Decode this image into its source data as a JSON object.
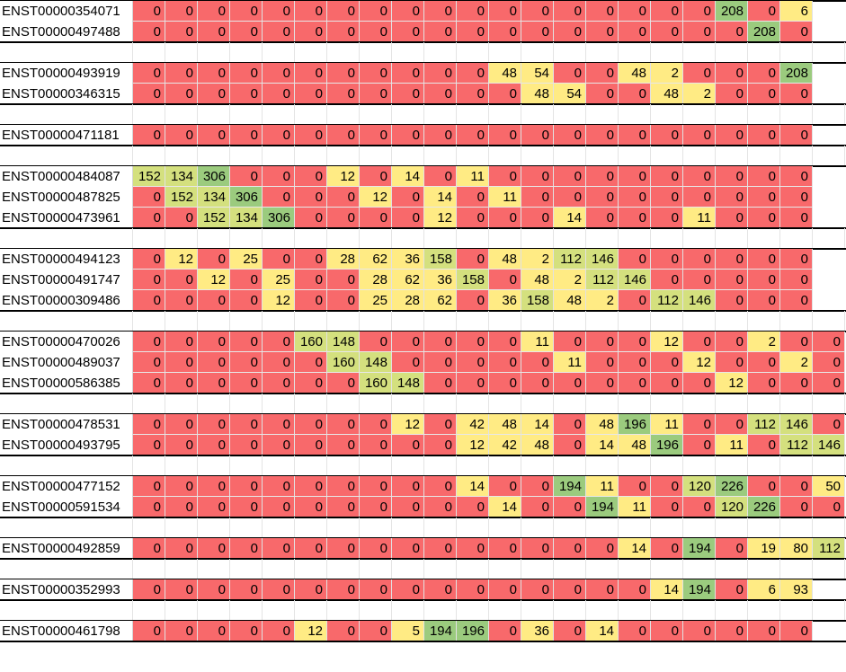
{
  "sheet": {
    "colors": {
      "zero": "#f8696b",
      "low": "#ffeb84",
      "mid": "#d4e07e",
      "high": "#9bcb7e",
      "border": "#000000"
    },
    "groups": [
      [
        {
          "id": "ENST00000354071",
          "values": [
            0,
            0,
            0,
            0,
            0,
            0,
            0,
            0,
            0,
            0,
            0,
            0,
            0,
            0,
            0,
            0,
            0,
            0,
            208,
            0,
            6
          ]
        },
        {
          "id": "ENST00000497488",
          "values": [
            0,
            0,
            0,
            0,
            0,
            0,
            0,
            0,
            0,
            0,
            0,
            0,
            0,
            0,
            0,
            0,
            0,
            0,
            0,
            208,
            0
          ]
        }
      ],
      [
        {
          "id": "ENST00000493919",
          "values": [
            0,
            0,
            0,
            0,
            0,
            0,
            0,
            0,
            0,
            0,
            0,
            48,
            54,
            0,
            0,
            48,
            2,
            0,
            0,
            0,
            208
          ]
        },
        {
          "id": "ENST00000346315",
          "values": [
            0,
            0,
            0,
            0,
            0,
            0,
            0,
            0,
            0,
            0,
            0,
            0,
            48,
            54,
            0,
            0,
            48,
            2,
            0,
            0,
            0
          ]
        }
      ],
      [
        {
          "id": "ENST00000471181",
          "values": [
            0,
            0,
            0,
            0,
            0,
            0,
            0,
            0,
            0,
            0,
            0,
            0,
            0,
            0,
            0,
            0,
            0,
            0,
            0,
            0,
            0
          ]
        }
      ],
      [
        {
          "id": "ENST00000484087",
          "values": [
            152,
            134,
            306,
            0,
            0,
            0,
            12,
            0,
            14,
            0,
            11,
            0,
            0,
            0,
            0,
            0,
            0,
            0,
            0,
            0,
            0
          ]
        },
        {
          "id": "ENST00000487825",
          "values": [
            0,
            152,
            134,
            306,
            0,
            0,
            0,
            12,
            0,
            14,
            0,
            11,
            0,
            0,
            0,
            0,
            0,
            0,
            0,
            0,
            0
          ]
        },
        {
          "id": "ENST00000473961",
          "values": [
            0,
            0,
            152,
            134,
            306,
            0,
            0,
            0,
            0,
            12,
            0,
            0,
            0,
            14,
            0,
            0,
            0,
            11,
            0,
            0,
            0
          ]
        }
      ],
      [
        {
          "id": "ENST00000494123",
          "values": [
            0,
            12,
            0,
            25,
            0,
            0,
            28,
            62,
            36,
            158,
            0,
            48,
            2,
            112,
            146,
            0,
            0,
            0,
            0,
            0,
            0
          ]
        },
        {
          "id": "ENST00000491747",
          "values": [
            0,
            0,
            12,
            0,
            25,
            0,
            0,
            28,
            62,
            36,
            158,
            0,
            48,
            2,
            112,
            146,
            0,
            0,
            0,
            0,
            0
          ]
        },
        {
          "id": "ENST00000309486",
          "values": [
            0,
            0,
            0,
            0,
            12,
            0,
            0,
            25,
            28,
            62,
            0,
            36,
            158,
            48,
            2,
            0,
            112,
            146,
            0,
            0,
            0
          ]
        }
      ],
      [
        {
          "id": "ENST00000470026",
          "values": [
            0,
            0,
            0,
            0,
            0,
            160,
            148,
            0,
            0,
            0,
            0,
            0,
            11,
            0,
            0,
            0,
            12,
            0,
            0,
            2,
            0,
            0
          ]
        },
        {
          "id": "ENST00000489037",
          "values": [
            0,
            0,
            0,
            0,
            0,
            0,
            160,
            148,
            0,
            0,
            0,
            0,
            0,
            11,
            0,
            0,
            0,
            12,
            0,
            0,
            2,
            0
          ]
        },
        {
          "id": "ENST00000586385",
          "values": [
            0,
            0,
            0,
            0,
            0,
            0,
            0,
            160,
            148,
            0,
            0,
            0,
            0,
            0,
            0,
            0,
            0,
            0,
            12,
            0,
            0,
            0
          ]
        }
      ],
      [
        {
          "id": "ENST00000478531",
          "values": [
            0,
            0,
            0,
            0,
            0,
            0,
            0,
            0,
            12,
            0,
            42,
            48,
            14,
            0,
            48,
            196,
            11,
            0,
            0,
            112,
            146,
            0
          ]
        },
        {
          "id": "ENST00000493795",
          "values": [
            0,
            0,
            0,
            0,
            0,
            0,
            0,
            0,
            0,
            0,
            12,
            42,
            48,
            0,
            14,
            48,
            196,
            0,
            11,
            0,
            112,
            146
          ]
        }
      ],
      [
        {
          "id": "ENST00000477152",
          "values": [
            0,
            0,
            0,
            0,
            0,
            0,
            0,
            0,
            0,
            0,
            14,
            0,
            0,
            194,
            11,
            0,
            0,
            120,
            226,
            0,
            0,
            50
          ]
        },
        {
          "id": "ENST00000591534",
          "values": [
            0,
            0,
            0,
            0,
            0,
            0,
            0,
            0,
            0,
            0,
            0,
            14,
            0,
            0,
            194,
            11,
            0,
            0,
            120,
            226,
            0,
            0
          ]
        }
      ],
      [
        {
          "id": "ENST00000492859",
          "values": [
            0,
            0,
            0,
            0,
            0,
            0,
            0,
            0,
            0,
            0,
            0,
            0,
            0,
            0,
            0,
            14,
            0,
            194,
            0,
            19,
            80,
            112
          ]
        }
      ],
      [
        {
          "id": "ENST00000352993",
          "values": [
            0,
            0,
            0,
            0,
            0,
            0,
            0,
            0,
            0,
            0,
            0,
            0,
            0,
            0,
            0,
            0,
            14,
            194,
            0,
            6,
            93
          ]
        }
      ],
      [
        {
          "id": "ENST00000461798",
          "values": [
            0,
            0,
            0,
            0,
            0,
            12,
            0,
            0,
            5,
            194,
            196,
            0,
            36,
            0,
            14,
            0,
            0,
            0,
            0,
            0,
            0
          ]
        }
      ]
    ]
  }
}
